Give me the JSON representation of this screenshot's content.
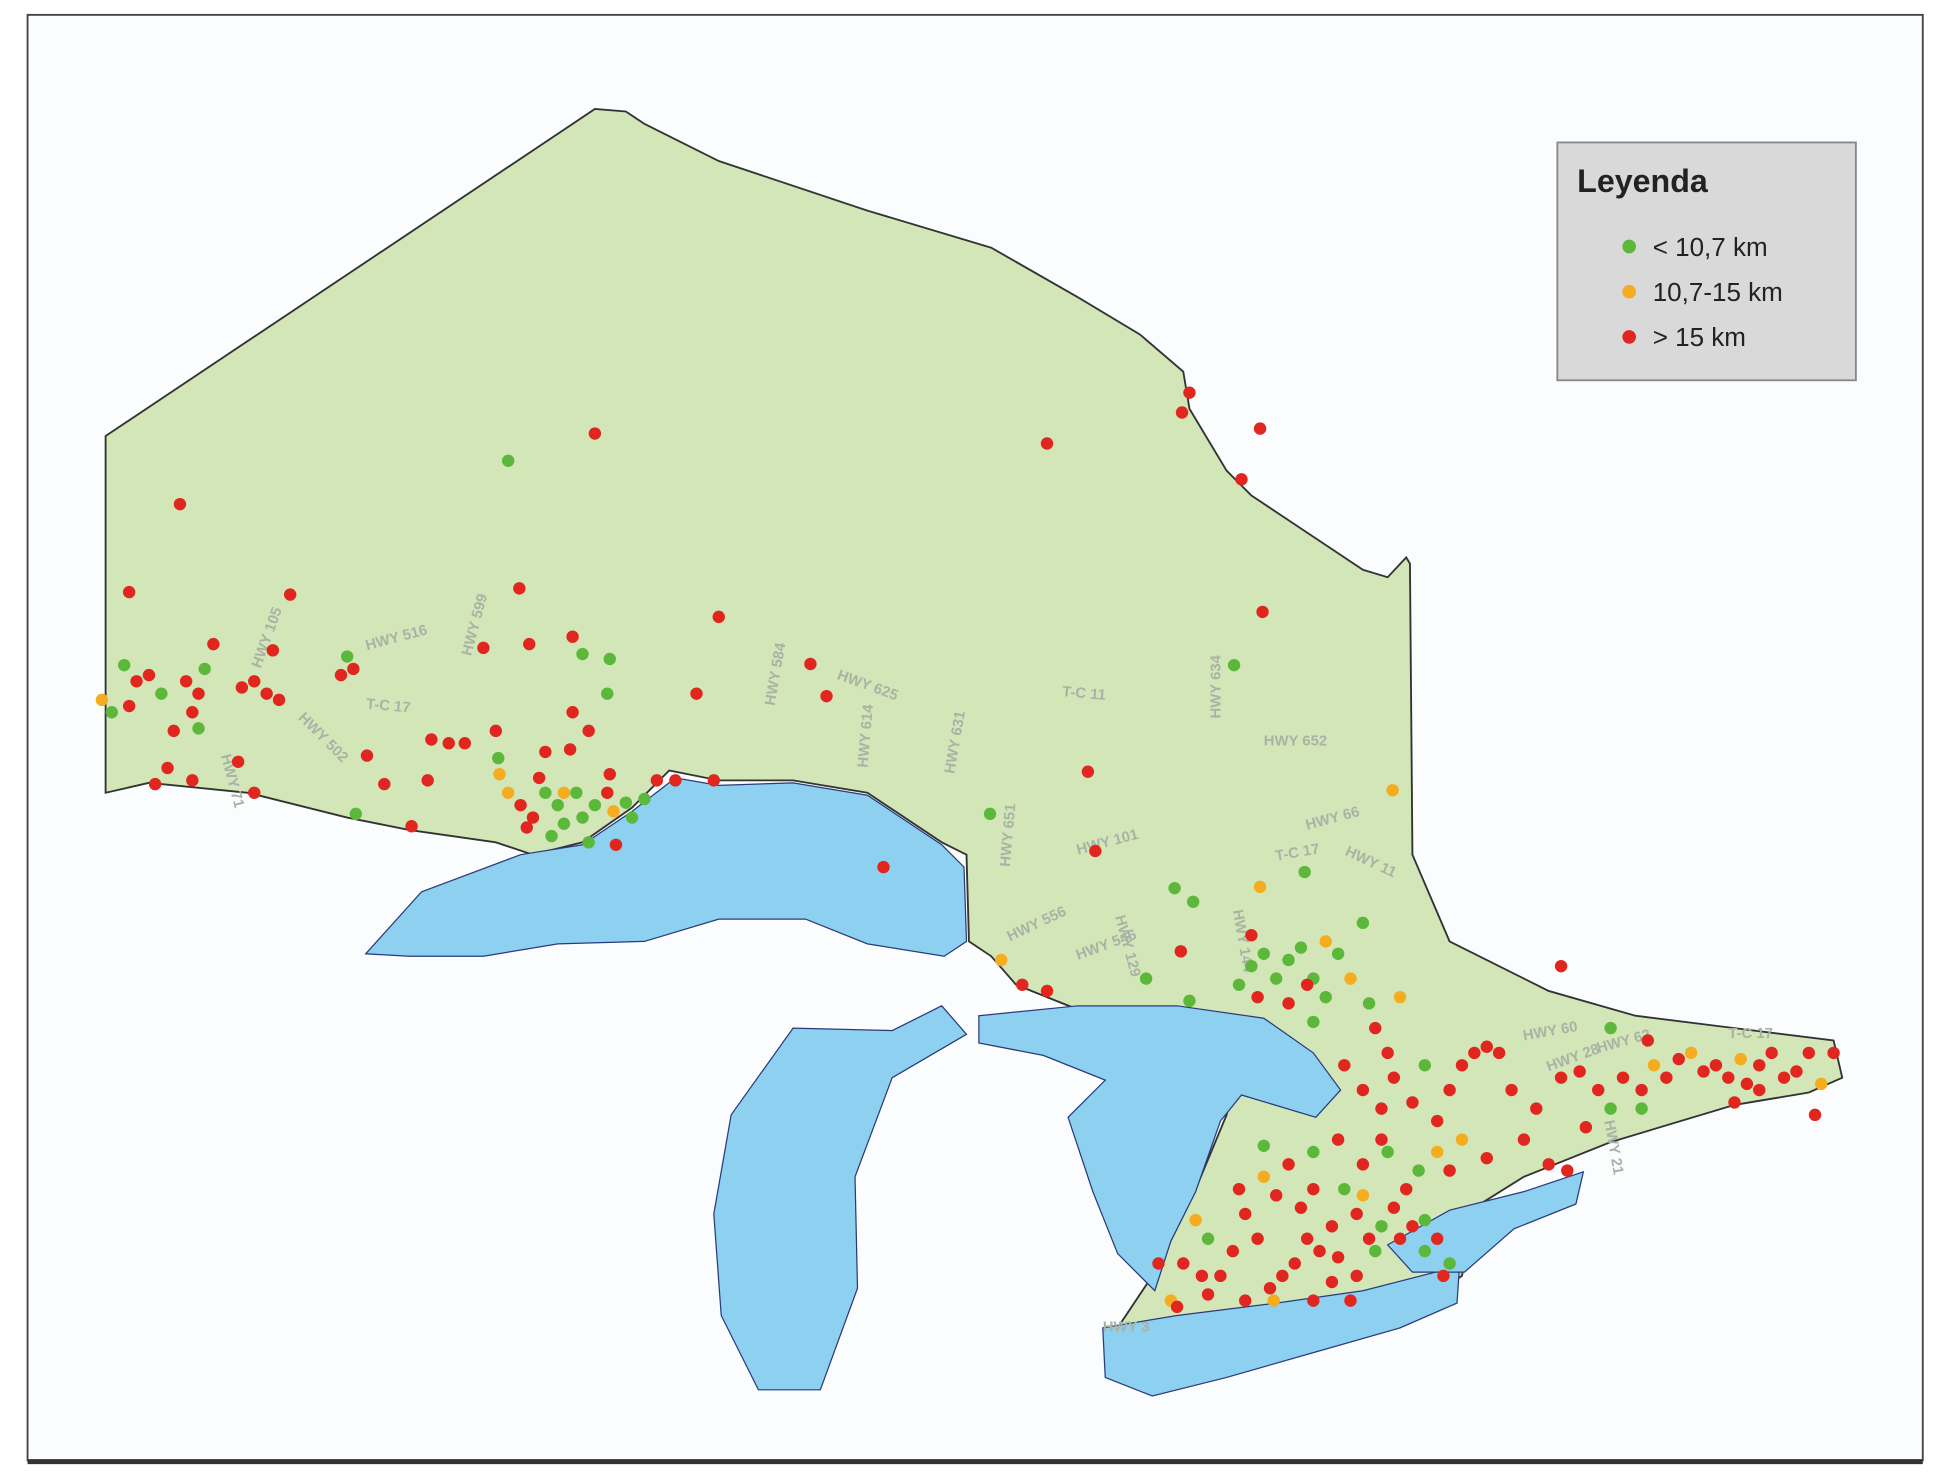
{
  "legend": {
    "title": "Leyenda",
    "items": [
      {
        "label": "< 10,7 km",
        "color": "#5cb83a"
      },
      {
        "label": "10,7-15 km",
        "color": "#f5ac1e"
      },
      {
        "label": "> 15 km",
        "color": "#e0261e"
      }
    ]
  },
  "road_labels": [
    "HWY 516",
    "HWY 599",
    "HWY 105",
    "HWY 502",
    "T-C 17",
    "HWY 71",
    "HWY 584",
    "HWY 625",
    "HWY 614",
    "HWY 631",
    "T-C 11",
    "HWY 634",
    "HWY 652",
    "HWY 101",
    "HWY 651",
    "HWY 556",
    "HWY 546",
    "HWY 129",
    "HWY 144",
    "HWY 66",
    "HWY 11",
    "T-C 17",
    "HWY 60",
    "HWY 28",
    "HWY 62",
    "T-C 17",
    "HWY 21",
    "HWY 3"
  ]
}
